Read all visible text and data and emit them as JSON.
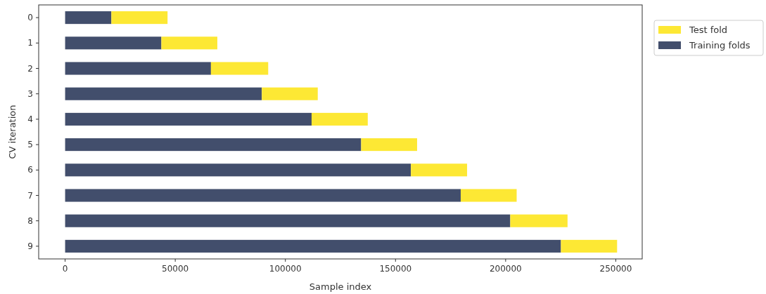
{
  "chart_data": {
    "type": "bar",
    "orientation": "horizontal",
    "stacked": true,
    "xlabel": "Sample index",
    "ylabel": "CV iteration",
    "categories": [
      "0",
      "1",
      "2",
      "3",
      "4",
      "5",
      "6",
      "7",
      "8",
      "9"
    ],
    "series": [
      {
        "name": "Training folds",
        "color": "#424e6c",
        "values": [
          21000,
          43700,
          66200,
          89300,
          111900,
          134400,
          157000,
          179600,
          202100,
          225100
        ]
      },
      {
        "name": "Test fold",
        "color": "#fde834",
        "values": [
          25500,
          25400,
          26000,
          25400,
          25500,
          25400,
          25500,
          25400,
          26000,
          25500
        ]
      }
    ],
    "xlim": [
      -12000,
      262000
    ],
    "xticks": [
      0,
      50000,
      100000,
      150000,
      200000,
      250000
    ],
    "legend": "top right"
  }
}
